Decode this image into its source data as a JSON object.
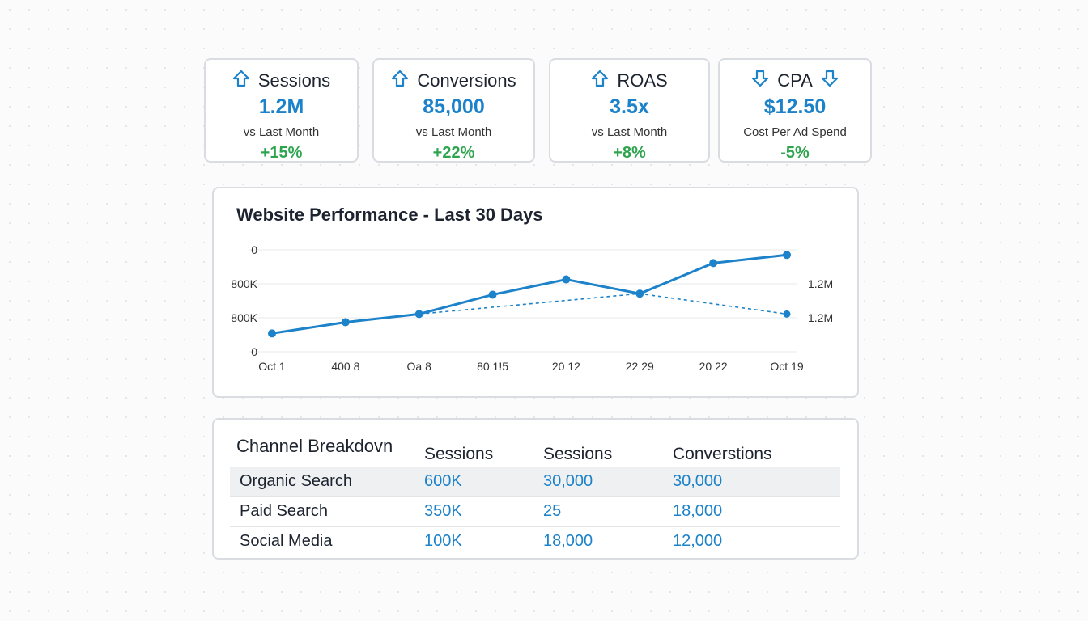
{
  "kpis": [
    {
      "title": "Sessions",
      "value": "1.2M",
      "sub": "vs Last Month",
      "change": "+15%",
      "icon": "arrow-up-icon"
    },
    {
      "title": "Conversions",
      "value": "85,000",
      "sub": "vs Last Month",
      "change": "+22%",
      "icon": "arrow-up-icon"
    },
    {
      "title": "ROAS",
      "value": "3.5x",
      "sub": "vs Last Month",
      "change": "+8%",
      "icon": "arrow-up-icon"
    },
    {
      "title": "CPA",
      "value": "$12.50",
      "sub": "Cost Per Ad Spend",
      "change": "-5%",
      "icon": "arrow-down-icon"
    }
  ],
  "colors": {
    "accent": "#1c82c9",
    "positive": "#2ea44f"
  },
  "chart_data": {
    "type": "line",
    "title": "Website Performance - Last 30 Days",
    "x": [
      "Oct 1",
      "400 8",
      "Oа 8",
      "80 1!5",
      "20 12",
      "22 29",
      "20 22",
      "Oct 19"
    ],
    "y_ticks_left": [
      "0",
      "800K",
      "800K",
      "0"
    ],
    "y_ticks_right": [
      "1.2M",
      "1.2M"
    ],
    "ylim": [
      0,
      100
    ],
    "grid": true,
    "series": [
      {
        "name": "solid",
        "style": "solid",
        "values": [
          18,
          29,
          37,
          56,
          71,
          57,
          87,
          95
        ]
      },
      {
        "name": "dashed",
        "style": "dashed",
        "values": [
          18,
          29,
          37,
          null,
          null,
          57,
          null,
          37
        ]
      }
    ]
  },
  "table": {
    "title": "Channel Breakdovn",
    "headers": [
      "Sessions",
      "Sessions",
      "Converstions"
    ],
    "rows": [
      {
        "label": "Organic Search",
        "cells": [
          "600K",
          "30,000",
          "30,000"
        ]
      },
      {
        "label": "Paid Search",
        "cells": [
          "350K",
          "25",
          "18,000"
        ]
      },
      {
        "label": "Social Media",
        "cells": [
          "100K",
          "18,000",
          "12,000"
        ]
      }
    ]
  }
}
